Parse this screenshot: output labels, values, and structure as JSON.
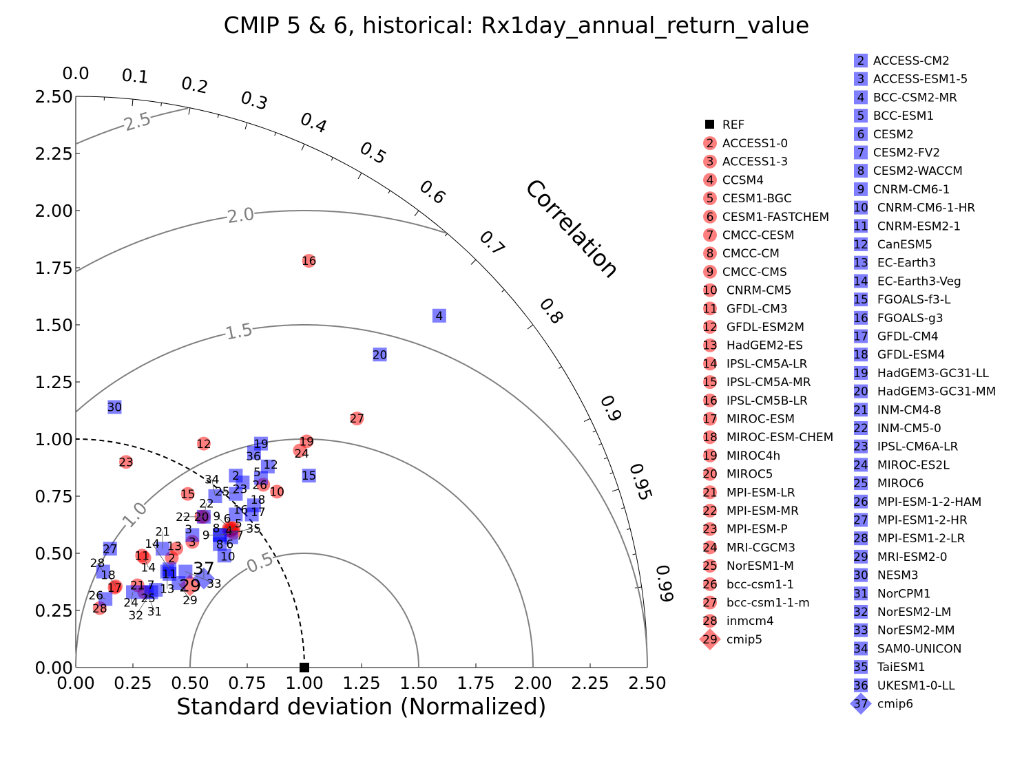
{
  "chart_data": {
    "type": "taylor-diagram",
    "title": "CMIP 5 & 6, historical: Rx1day_annual_return_value",
    "xlabel": "Standard deviation (Normalized)",
    "correlation_label": "Correlation",
    "std_range": [
      0,
      2.5
    ],
    "std_ticks": [
      "0.00",
      "0.25",
      "0.50",
      "0.75",
      "1.00",
      "1.25",
      "1.50",
      "1.75",
      "2.00",
      "2.25",
      "2.50"
    ],
    "correlation_ticks": [
      "0.0",
      "0.1",
      "0.2",
      "0.3",
      "0.4",
      "0.5",
      "0.6",
      "0.7",
      "0.8",
      "0.9",
      "0.95",
      "0.99"
    ],
    "rms_contours": [
      "0.5",
      "1.0",
      "1.5",
      "2.0",
      "2.5"
    ],
    "reference": {
      "name": "REF",
      "std": 1.0,
      "corr": 1.0
    },
    "colors": {
      "cmip5": "#ff0000",
      "cmip6": "#0000ff",
      "ref": "#000000",
      "rms": "#808080"
    },
    "cmip5": [
      {
        "id": "2",
        "name": "ACCESS1-0",
        "x": 0.42,
        "y": 0.48
      },
      {
        "id": "3",
        "name": "ACCESS1-3",
        "x": 0.51,
        "y": 0.55
      },
      {
        "id": "4",
        "name": "CCSM4",
        "x": 0.67,
        "y": 0.6
      },
      {
        "id": "5",
        "name": "CESM1-BGC",
        "x": 0.68,
        "y": 0.6
      },
      {
        "id": "6",
        "name": "CESM1-FASTCHEM",
        "x": 0.68,
        "y": 0.61
      },
      {
        "id": "7",
        "name": "CMCC-CESM",
        "x": 0.69,
        "y": 0.59
      },
      {
        "id": "8",
        "name": "CMCC-CM",
        "x": 0.69,
        "y": 0.61
      },
      {
        "id": "9",
        "name": "CMCC-CMS",
        "x": 0.67,
        "y": 0.61
      },
      {
        "id": "10",
        "name": "CNRM-CM5",
        "x": 0.88,
        "y": 0.77
      },
      {
        "id": "11",
        "name": "GFDL-CM3",
        "x": 0.29,
        "y": 0.49
      },
      {
        "id": "12",
        "name": "GFDL-ESM2M",
        "x": 0.56,
        "y": 0.98
      },
      {
        "id": "13",
        "name": "HadGEM2-ES",
        "x": 0.44,
        "y": 0.52
      },
      {
        "id": "14",
        "name": "IPSL-CM5A-LR",
        "x": 0.3,
        "y": 0.48
      },
      {
        "id": "15",
        "name": "IPSL-CM5A-MR",
        "x": 0.49,
        "y": 0.76
      },
      {
        "id": "16",
        "name": "IPSL-CM5B-LR",
        "x": 1.02,
        "y": 1.78
      },
      {
        "id": "17",
        "name": "MIROC-ESM",
        "x": 0.17,
        "y": 0.35
      },
      {
        "id": "18",
        "name": "MIROC-ESM-CHEM",
        "x": 0.175,
        "y": 0.355
      },
      {
        "id": "19",
        "name": "MIROC4h",
        "x": 1.01,
        "y": 0.99
      },
      {
        "id": "20",
        "name": "MIROC5",
        "x": 0.55,
        "y": 0.66
      },
      {
        "id": "21",
        "name": "MPI-ESM-LR",
        "x": 0.27,
        "y": 0.36
      },
      {
        "id": "22",
        "name": "MPI-ESM-MR",
        "x": 0.56,
        "y": 0.66
      },
      {
        "id": "23",
        "name": "MPI-ESM-P",
        "x": 0.22,
        "y": 0.9
      },
      {
        "id": "24",
        "name": "MRI-CGCM3",
        "x": 0.98,
        "y": 0.95
      },
      {
        "id": "25",
        "name": "NorESM1-M",
        "x": 0.3,
        "y": 0.33
      },
      {
        "id": "26",
        "name": "bcc-csm1-1",
        "x": 0.82,
        "y": 0.8
      },
      {
        "id": "27",
        "name": "bcc-csm1-1-m",
        "x": 1.23,
        "y": 1.09
      },
      {
        "id": "28",
        "name": "inmcm4",
        "x": 0.105,
        "y": 0.26
      },
      {
        "id": "29",
        "name": "cmip5",
        "x": 0.5,
        "y": 0.36,
        "mean": true
      }
    ],
    "cmip6": [
      {
        "id": "2",
        "name": "ACCESS-CM2",
        "x": 0.7,
        "y": 0.84
      },
      {
        "id": "3",
        "name": "ACCESS-ESM1-5",
        "x": 0.51,
        "y": 0.58
      },
      {
        "id": "4",
        "name": "BCC-CSM2-MR",
        "x": 1.59,
        "y": 1.54
      },
      {
        "id": "5",
        "name": "BCC-ESM1",
        "x": 0.81,
        "y": 0.83
      },
      {
        "id": "6",
        "name": "CESM2",
        "x": 0.68,
        "y": 0.57
      },
      {
        "id": "7",
        "name": "CESM2-FV2",
        "x": 0.35,
        "y": 0.34
      },
      {
        "id": "8",
        "name": "CESM2-WACCM",
        "x": 0.63,
        "y": 0.54
      },
      {
        "id": "9",
        "name": "CNRM-CM6-1",
        "x": 0.63,
        "y": 0.58
      },
      {
        "id": "10",
        "name": "CNRM-CM6-1-HR",
        "x": 0.65,
        "y": 0.49
      },
      {
        "id": "11",
        "name": "CNRM-ESM2-1",
        "x": 0.41,
        "y": 0.41
      },
      {
        "id": "12",
        "name": "CanESM5",
        "x": 0.84,
        "y": 0.88
      },
      {
        "id": "13",
        "name": "EC-Earth3",
        "x": 0.4,
        "y": 0.42
      },
      {
        "id": "14",
        "name": "EC-Earth3-Veg",
        "x": 0.41,
        "y": 0.43
      },
      {
        "id": "15",
        "name": "FGOALS-f3-L",
        "x": 1.02,
        "y": 0.84
      },
      {
        "id": "16",
        "name": "FGOALS-g3",
        "x": 0.7,
        "y": 0.67
      },
      {
        "id": "17",
        "name": "GFDL-CM4",
        "x": 0.77,
        "y": 0.67
      },
      {
        "id": "18",
        "name": "GFDL-ESM4",
        "x": 0.78,
        "y": 0.71
      },
      {
        "id": "19",
        "name": "HadGEM3-GC31-LL",
        "x": 0.81,
        "y": 0.98
      },
      {
        "id": "20",
        "name": "HadGEM3-GC31-MM",
        "x": 1.33,
        "y": 1.37
      },
      {
        "id": "21",
        "name": "INM-CM4-8",
        "x": 0.38,
        "y": 0.52
      },
      {
        "id": "22",
        "name": "INM-CM5-0",
        "x": 0.56,
        "y": 0.66
      },
      {
        "id": "23",
        "name": "IPSL-CM6A-LR",
        "x": 0.73,
        "y": 0.81
      },
      {
        "id": "24",
        "name": "MIROC-ES2L",
        "x": 0.25,
        "y": 0.33
      },
      {
        "id": "25",
        "name": "MIROC6",
        "x": 0.7,
        "y": 0.76
      },
      {
        "id": "26",
        "name": "MPI-ESM-1-2-HAM",
        "x": 0.13,
        "y": 0.3
      },
      {
        "id": "27",
        "name": "MPI-ESM1-2-HR",
        "x": 0.15,
        "y": 0.52
      },
      {
        "id": "28",
        "name": "MPI-ESM1-2-LR",
        "x": 0.12,
        "y": 0.42
      },
      {
        "id": "29",
        "name": "MRI-ESM2-0",
        "x": 0.45,
        "y": 0.37
      },
      {
        "id": "30",
        "name": "NESM3",
        "x": 0.17,
        "y": 1.14
      },
      {
        "id": "31",
        "name": "NorCPM1",
        "x": 0.31,
        "y": 0.33
      },
      {
        "id": "32",
        "name": "NorESM2-LM",
        "x": 0.33,
        "y": 0.33
      },
      {
        "id": "33",
        "name": "NorESM2-MM",
        "x": 0.48,
        "y": 0.42
      },
      {
        "id": "34",
        "name": "SAM0-UNICON",
        "x": 0.61,
        "y": 0.75
      },
      {
        "id": "35",
        "name": "TaiESM1",
        "x": 0.63,
        "y": 0.58
      },
      {
        "id": "36",
        "name": "UKESM1-0-LL",
        "x": 0.78,
        "y": 0.94
      },
      {
        "id": "37",
        "name": "cmip6",
        "x": 0.56,
        "y": 0.39,
        "mean": true
      }
    ]
  }
}
